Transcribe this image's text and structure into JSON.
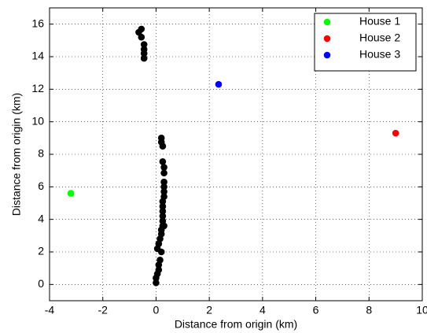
{
  "chart_data": {
    "type": "scatter",
    "x_label": "Distance from origin (km)",
    "y_label": "Distance from origin (km)",
    "xlim": [
      -4,
      10
    ],
    "ylim": [
      -1,
      17
    ],
    "xticks": [
      -4,
      -2,
      0,
      2,
      4,
      6,
      8,
      10
    ],
    "yticks": [
      0,
      2,
      4,
      6,
      8,
      10,
      12,
      14,
      16
    ],
    "grid": true,
    "legend": "northeast",
    "series": [
      {
        "color": "#000000",
        "x": [
          0,
          0,
          0.05,
          0.1,
          0.1,
          0.15,
          0.2,
          0.05,
          0.1,
          0.15,
          0.2,
          0.2,
          0.25,
          0.3,
          0.25,
          0.25,
          0.25,
          0.25,
          0.25,
          0.3,
          0.3,
          0.3,
          0.3,
          0.3,
          0.3,
          0.25,
          0.25,
          0.2,
          0.2,
          -0.55,
          -0.65,
          -0.55,
          -0.45,
          -0.45,
          -0.45,
          -0.45
        ],
        "y": [
          0.1,
          0.4,
          0.65,
          0.9,
          1.2,
          1.5,
          2.0,
          2.2,
          2.5,
          2.8,
          3.1,
          3.35,
          3.6,
          3.6,
          3.9,
          4.2,
          4.5,
          4.8,
          5.1,
          5.4,
          5.7,
          6.0,
          6.3,
          6.85,
          7.2,
          7.55,
          8.5,
          8.75,
          9.0,
          15.7,
          15.5,
          15.2,
          14.75,
          14.45,
          14.2,
          13.9
        ]
      },
      {
        "name": "House 1",
        "color": "#00ff00",
        "x": [
          -3.2
        ],
        "y": [
          5.6
        ]
      },
      {
        "name": "House 2",
        "color": "#ff0000",
        "x": [
          9.0
        ],
        "y": [
          9.3
        ]
      },
      {
        "name": "House 3",
        "color": "#0000ff",
        "x": [
          2.35
        ],
        "y": [
          12.3
        ]
      }
    ]
  }
}
